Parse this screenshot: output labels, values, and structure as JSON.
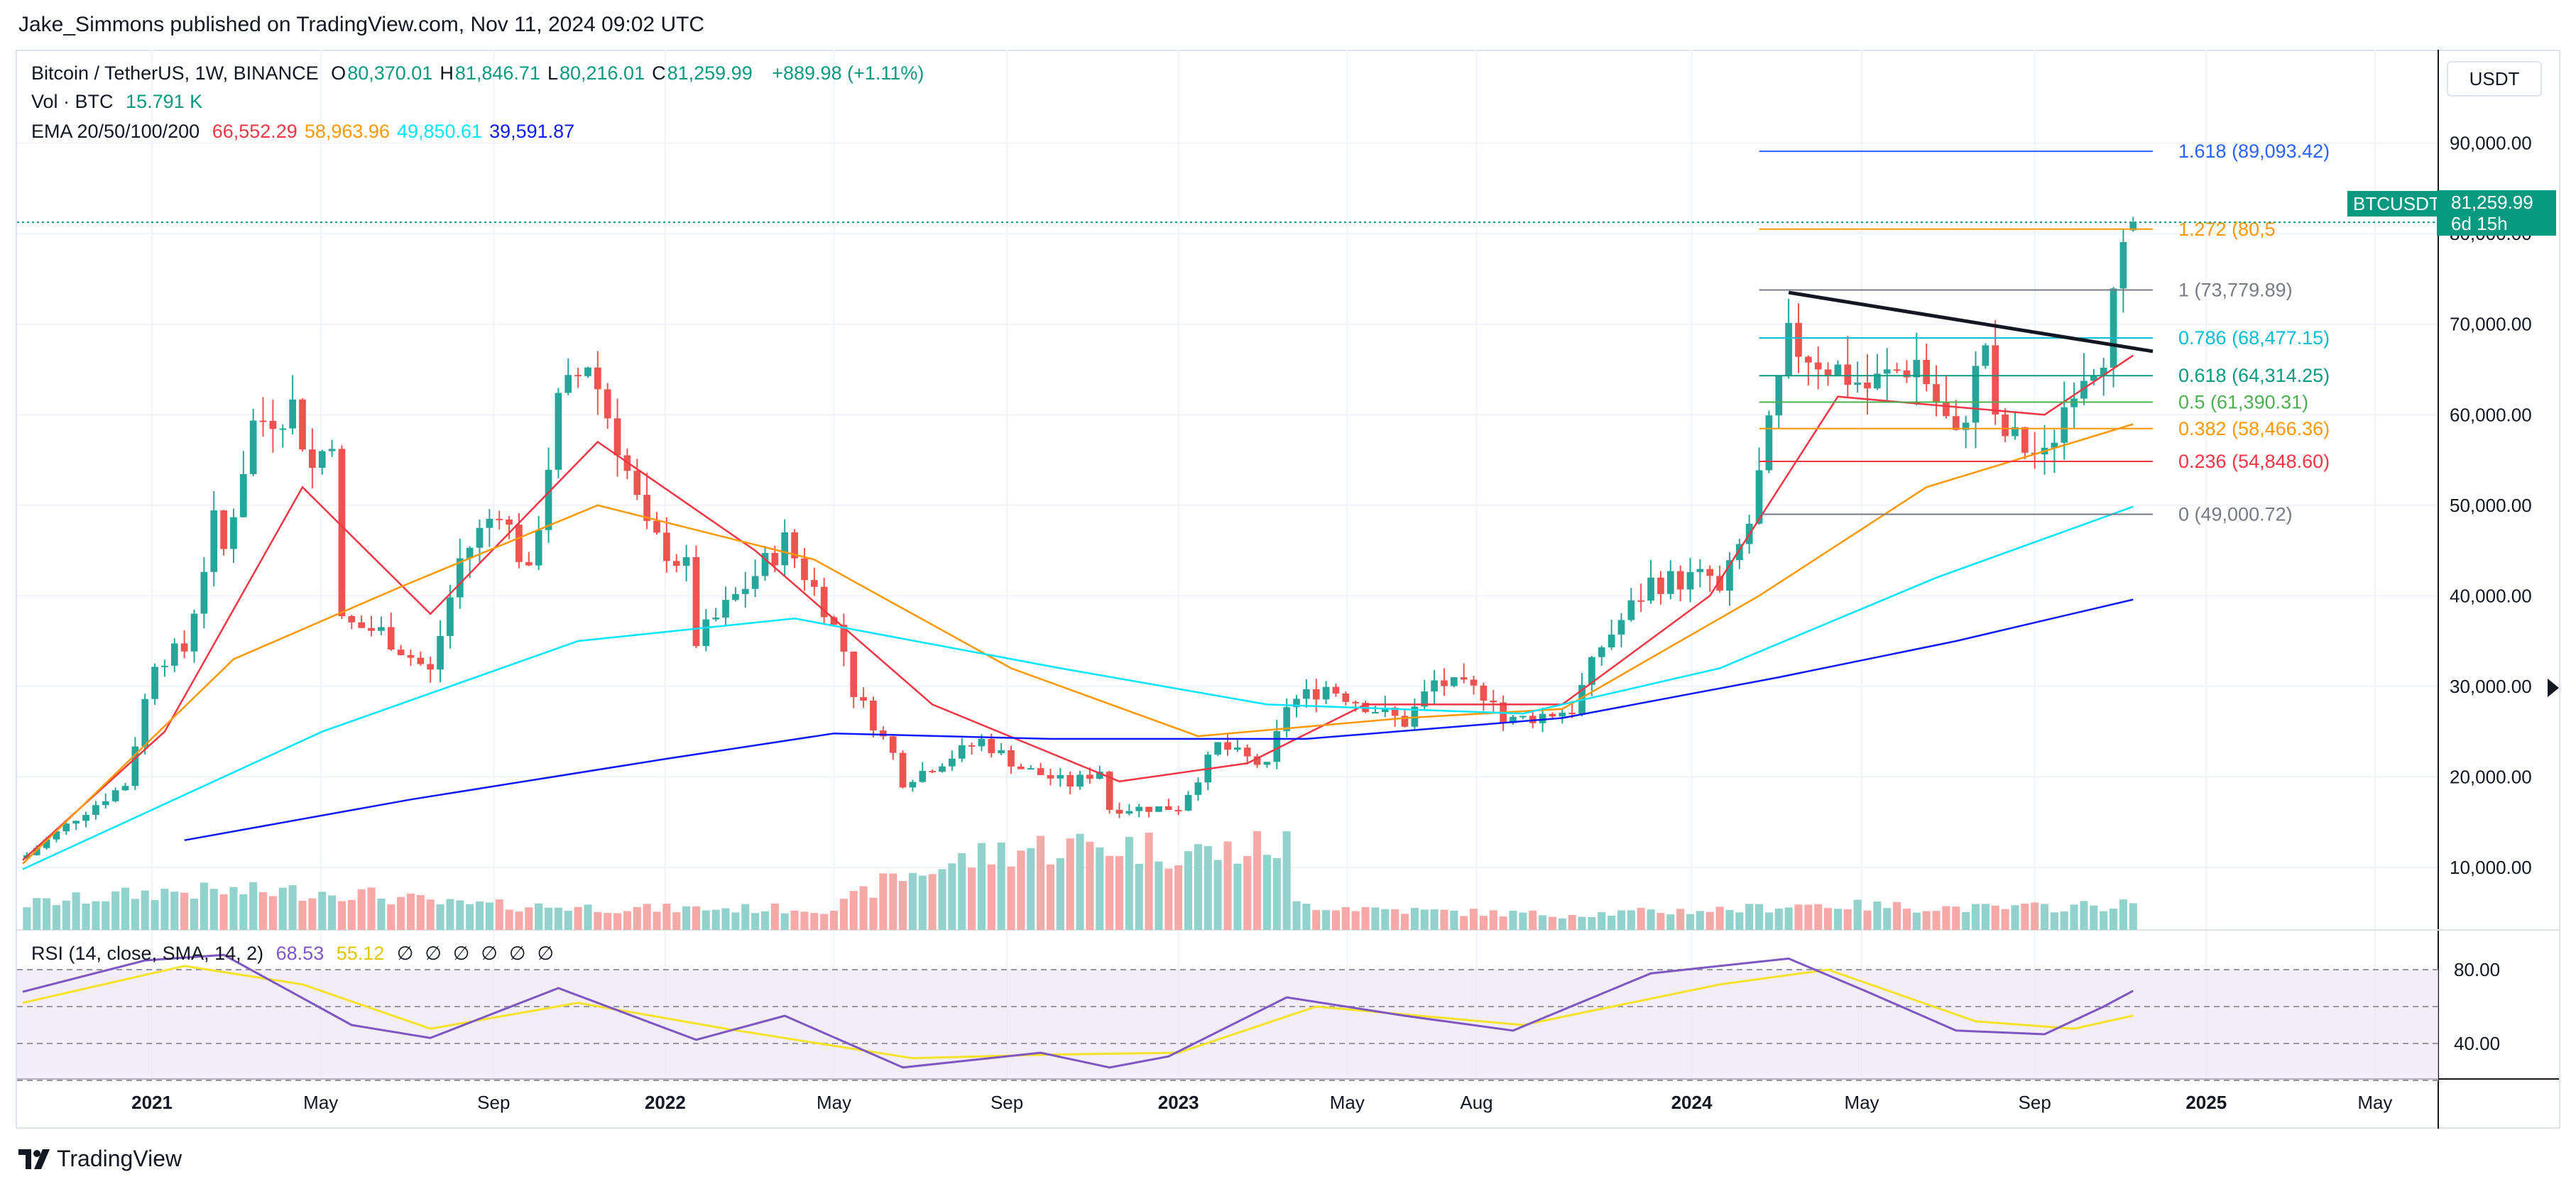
{
  "header": {
    "published": "Jake_Simmons published on TradingView.com, Nov 11, 2024 09:02 UTC"
  },
  "legend": {
    "symbol": "Bitcoin / TetherUS, 1W, BINANCE",
    "ohlc": [
      {
        "k": "O",
        "v": "80,370.01"
      },
      {
        "k": "H",
        "v": "81,846.71"
      },
      {
        "k": "L",
        "v": "80,216.01"
      },
      {
        "k": "C",
        "v": "81,259.99"
      }
    ],
    "change": "+889.98 (+1.11%)",
    "vol_label": "Vol · BTC",
    "vol_value": "15.791 K",
    "ema_label": "EMA 20/50/100/200",
    "ema_values": [
      {
        "v": "66,552.29",
        "color": "#f23645"
      },
      {
        "v": "58,963.96",
        "color": "#ff9800"
      },
      {
        "v": "49,850.61",
        "color": "#00e5ff"
      },
      {
        "v": "39,591.87",
        "color": "#0d1aff"
      }
    ]
  },
  "rsi": {
    "label": "RSI (14, close, SMA, 14, 2)",
    "value": "68.53",
    "sma": "55.12",
    "empty_marks": [
      "∅",
      "∅",
      "∅",
      "∅",
      "∅",
      "∅"
    ],
    "levels": [
      80.0,
      40.0
    ],
    "tick_labels": [
      "80.00",
      "40.00"
    ]
  },
  "price_tag": {
    "symbol": "BTCUSDT",
    "price": "81,259.99",
    "countdown": "6d 15h"
  },
  "currency_button": "USDT",
  "footer": {
    "brand": "TradingView"
  },
  "colors": {
    "up": "#26a69a",
    "down": "#ef5350",
    "vol_up": "#92d2cc",
    "vol_down": "#f7a9a7",
    "ema20": "#f23645",
    "ema50": "#ff9800",
    "ema100": "#00e5ff",
    "ema200": "#0d1aff",
    "rsi": "#7e57c2",
    "rsi_sma": "#f5e22a"
  },
  "chart_data": {
    "type": "candlestick",
    "title": "Bitcoin / TetherUS, 1W, BINANCE",
    "y_tick_labels": [
      "90,000.00",
      "80,000.00",
      "70,000.00",
      "60,000.00",
      "50,000.00",
      "40,000.00",
      "30,000.00",
      "20,000.00",
      "10,000.00"
    ],
    "y_ticks": [
      90000,
      80000,
      70000,
      60000,
      50000,
      40000,
      30000,
      20000,
      10000
    ],
    "x_tick_labels": [
      "2021",
      "May",
      "Sep",
      "2022",
      "May",
      "Sep",
      "2023",
      "May",
      "Aug",
      "2024",
      "May",
      "Sep",
      "2025",
      "May"
    ],
    "x_tick_dates": [
      "2021-01-01",
      "2021-05-01",
      "2021-09-01",
      "2022-01-01",
      "2022-05-01",
      "2022-09-01",
      "2023-01-01",
      "2023-05-01",
      "2023-08-01",
      "2024-01-01",
      "2024-05-01",
      "2024-09-01",
      "2025-01-01",
      "2025-05-01"
    ],
    "x_range": [
      "2020-09-27",
      "2025-06-15"
    ],
    "price_anchors": [
      [
        "2020-10-01",
        11000
      ],
      [
        "2020-11-08",
        15500
      ],
      [
        "2020-12-13",
        19200
      ],
      [
        "2021-01-03",
        33000
      ],
      [
        "2021-01-24",
        34000
      ],
      [
        "2021-02-14",
        48000
      ],
      [
        "2021-02-21",
        45000
      ],
      [
        "2021-03-14",
        59000
      ],
      [
        "2021-04-11",
        61000
      ],
      [
        "2021-04-25",
        54000
      ],
      [
        "2021-05-09",
        58000
      ],
      [
        "2021-05-16",
        37000
      ],
      [
        "2021-06-13",
        36000
      ],
      [
        "2021-07-18",
        31500
      ],
      [
        "2021-08-08",
        44000
      ],
      [
        "2021-09-05",
        50000
      ],
      [
        "2021-09-26",
        42000
      ],
      [
        "2021-10-17",
        61000
      ],
      [
        "2021-11-07",
        66000
      ],
      [
        "2021-11-28",
        57000
      ],
      [
        "2021-12-19",
        47000
      ],
      [
        "2022-01-16",
        43000
      ],
      [
        "2022-01-23",
        35000
      ],
      [
        "2022-03-27",
        46000
      ],
      [
        "2022-04-24",
        39000
      ],
      [
        "2022-05-08",
        34000
      ],
      [
        "2022-05-15",
        29500
      ],
      [
        "2022-06-12",
        22500
      ],
      [
        "2022-06-19",
        19500
      ],
      [
        "2022-08-14",
        24000
      ],
      [
        "2022-09-11",
        21000
      ],
      [
        "2022-10-16",
        19200
      ],
      [
        "2022-11-06",
        20800
      ],
      [
        "2022-11-13",
        16500
      ],
      [
        "2023-01-01",
        16600
      ],
      [
        "2023-01-29",
        23500
      ],
      [
        "2023-03-05",
        21000
      ],
      [
        "2023-03-19",
        28000
      ],
      [
        "2023-04-16",
        30000
      ],
      [
        "2023-06-11",
        26000
      ],
      [
        "2023-07-02",
        30500
      ],
      [
        "2023-08-13",
        29000
      ],
      [
        "2023-08-20",
        26000
      ],
      [
        "2023-10-08",
        27500
      ],
      [
        "2023-10-29",
        34500
      ],
      [
        "2023-12-03",
        41500
      ],
      [
        "2024-01-14",
        42000
      ],
      [
        "2024-01-21",
        40000
      ],
      [
        "2024-02-11",
        48000
      ],
      [
        "2024-03-10",
        68000
      ],
      [
        "2024-04-14",
        65000
      ],
      [
        "2024-05-05",
        63000
      ],
      [
        "2024-06-09",
        66000
      ],
      [
        "2024-07-07",
        57000
      ],
      [
        "2024-07-28",
        68000
      ],
      [
        "2024-08-04",
        58500
      ],
      [
        "2024-09-08",
        55000
      ],
      [
        "2024-09-29",
        64000
      ],
      [
        "2024-10-20",
        67500
      ],
      [
        "2024-11-03",
        76500
      ],
      [
        "2024-11-10",
        81259.99
      ]
    ],
    "last_candle": {
      "date": "2024-11-10",
      "open": 80370.01,
      "high": 81846.71,
      "low": 80216.01,
      "close": 81259.99
    },
    "ema": [
      {
        "name": "EMA 20",
        "color": "#f23645",
        "points": [
          [
            "2020-10-01",
            10800
          ],
          [
            "2021-01-10",
            25000
          ],
          [
            "2021-04-18",
            52000
          ],
          [
            "2021-07-18",
            38000
          ],
          [
            "2021-11-14",
            57000
          ],
          [
            "2022-03-06",
            45000
          ],
          [
            "2022-07-10",
            28000
          ],
          [
            "2022-11-20",
            19500
          ],
          [
            "2023-02-19",
            21500
          ],
          [
            "2023-05-14",
            28000
          ],
          [
            "2023-10-01",
            28000
          ],
          [
            "2024-01-14",
            40000
          ],
          [
            "2024-04-14",
            62000
          ],
          [
            "2024-09-08",
            60000
          ],
          [
            "2024-11-10",
            66552.29
          ]
        ]
      },
      {
        "name": "EMA 50",
        "color": "#ff9800",
        "points": [
          [
            "2020-10-01",
            10400
          ],
          [
            "2021-02-28",
            33000
          ],
          [
            "2021-06-27",
            41000
          ],
          [
            "2021-11-14",
            50000
          ],
          [
            "2022-04-17",
            44000
          ],
          [
            "2022-09-04",
            32000
          ],
          [
            "2023-01-15",
            24500
          ],
          [
            "2023-06-11",
            26500
          ],
          [
            "2023-10-01",
            27500
          ],
          [
            "2024-02-18",
            40000
          ],
          [
            "2024-06-16",
            52000
          ],
          [
            "2024-11-10",
            58963.96
          ]
        ]
      },
      {
        "name": "EMA 100",
        "color": "#00e5ff",
        "points": [
          [
            "2020-10-01",
            9800
          ],
          [
            "2021-05-02",
            25000
          ],
          [
            "2021-10-31",
            35000
          ],
          [
            "2022-04-03",
            37500
          ],
          [
            "2022-10-09",
            32000
          ],
          [
            "2023-03-05",
            28000
          ],
          [
            "2023-09-03",
            27000
          ],
          [
            "2024-01-21",
            32000
          ],
          [
            "2024-06-23",
            42000
          ],
          [
            "2024-11-10",
            49850.61
          ]
        ]
      },
      {
        "name": "EMA 200",
        "color": "#0d1aff",
        "points": [
          [
            "2021-01-24",
            13000
          ],
          [
            "2021-07-04",
            17500
          ],
          [
            "2022-01-02",
            22000
          ],
          [
            "2022-05-01",
            24800
          ],
          [
            "2022-10-02",
            24200
          ],
          [
            "2023-04-02",
            24200
          ],
          [
            "2023-10-01",
            26500
          ],
          [
            "2024-03-03",
            31000
          ],
          [
            "2024-07-07",
            35000
          ],
          [
            "2024-11-10",
            39591.87
          ]
        ]
      }
    ],
    "trendline": [
      [
        "2024-03-10",
        73500
      ],
      [
        "2024-11-24",
        67000
      ]
    ],
    "fib_levels": [
      {
        "ratio": "1.618",
        "value": 89093.42,
        "label": "1.618 (89,093.42)",
        "color": "#2962ff"
      },
      {
        "ratio": "1.272",
        "value": 80500,
        "label": "1.272 (80,5",
        "color": "#ff9800"
      },
      {
        "ratio": "1",
        "value": 73779.89,
        "label": "1 (73,779.89)",
        "color": "#787b86"
      },
      {
        "ratio": "0.786",
        "value": 68477.15,
        "label": "0.786 (68,477.15)",
        "color": "#00bcd4"
      },
      {
        "ratio": "0.618",
        "value": 64314.25,
        "label": "0.618 (64,314.25)",
        "color": "#089981"
      },
      {
        "ratio": "0.5",
        "value": 61390.31,
        "label": "0.5 (61,390.31)",
        "color": "#4caf50"
      },
      {
        "ratio": "0.382",
        "value": 58466.36,
        "label": "0.382 (58,466.36)",
        "color": "#ff9800"
      },
      {
        "ratio": "0.236",
        "value": 54848.6,
        "label": "0.236 (54,848.60)",
        "color": "#f23645"
      },
      {
        "ratio": "0",
        "value": 49000.72,
        "label": "0 (49,000.72)",
        "color": "#787b86"
      }
    ],
    "fib_range": [
      "2024-02-18",
      "2024-11-24"
    ],
    "volume_relative": [
      [
        "2020-10-01",
        0.3
      ],
      [
        "2021-01-10",
        0.45
      ],
      [
        "2021-05-16",
        0.45
      ],
      [
        "2021-08-01",
        0.3
      ],
      [
        "2021-12-19",
        0.25
      ],
      [
        "2022-05-01",
        0.25
      ],
      [
        "2022-06-12",
        0.6
      ],
      [
        "2022-09-04",
        0.95
      ],
      [
        "2022-11-13",
        1.0
      ],
      [
        "2023-01-29",
        0.9
      ],
      [
        "2023-03-19",
        1.0
      ],
      [
        "2023-03-26",
        0.3
      ],
      [
        "2023-06-25",
        0.22
      ],
      [
        "2023-10-01",
        0.18
      ],
      [
        "2024-02-11",
        0.25
      ],
      [
        "2024-03-17",
        0.3
      ],
      [
        "2024-08-04",
        0.25
      ],
      [
        "2024-11-10",
        0.3
      ]
    ],
    "rsi_points": [
      [
        "2020-10-01",
        68
      ],
      [
        "2020-12-27",
        85
      ],
      [
        "2021-02-21",
        88
      ],
      [
        "2021-05-23",
        50
      ],
      [
        "2021-07-18",
        43
      ],
      [
        "2021-10-17",
        70
      ],
      [
        "2022-01-23",
        42
      ],
      [
        "2022-03-27",
        55
      ],
      [
        "2022-06-19",
        27
      ],
      [
        "2022-09-25",
        35
      ],
      [
        "2022-11-13",
        27
      ],
      [
        "2022-12-25",
        33
      ],
      [
        "2023-03-19",
        65
      ],
      [
        "2023-06-11",
        55
      ],
      [
        "2023-08-27",
        47
      ],
      [
        "2023-12-03",
        78
      ],
      [
        "2024-03-10",
        86
      ],
      [
        "2024-05-05",
        68
      ],
      [
        "2024-07-07",
        47
      ],
      [
        "2024-09-08",
        45
      ],
      [
        "2024-10-20",
        60
      ],
      [
        "2024-11-10",
        68.53
      ]
    ],
    "rsi_sma_points": [
      [
        "2020-10-01",
        62
      ],
      [
        "2021-01-24",
        82
      ],
      [
        "2021-04-18",
        72
      ],
      [
        "2021-07-18",
        48
      ],
      [
        "2021-10-31",
        62
      ],
      [
        "2022-02-13",
        48
      ],
      [
        "2022-06-26",
        32
      ],
      [
        "2022-10-02",
        34
      ],
      [
        "2023-01-01",
        35
      ],
      [
        "2023-04-09",
        60
      ],
      [
        "2023-09-03",
        50
      ],
      [
        "2024-01-21",
        72
      ],
      [
        "2024-04-07",
        80
      ],
      [
        "2024-07-21",
        52
      ],
      [
        "2024-09-29",
        48
      ],
      [
        "2024-11-10",
        55.12
      ]
    ],
    "grid": true
  }
}
